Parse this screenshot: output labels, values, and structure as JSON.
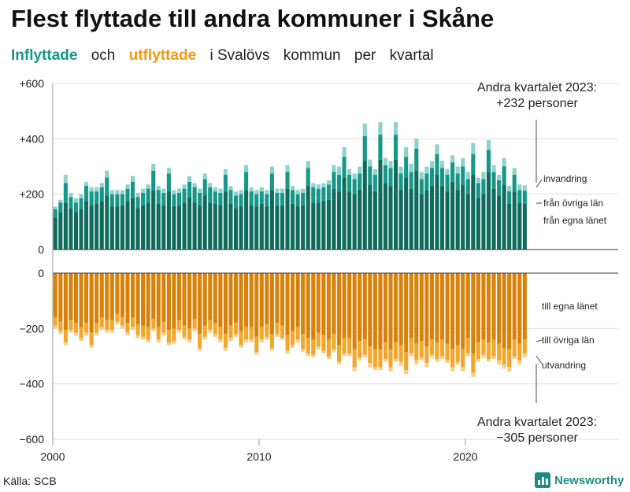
{
  "title": "Flest flyttade till andra kommuner i Skåne",
  "subtitle": {
    "inflyttade": "Inflyttade",
    "och": "och",
    "utflyttade": "utflyttade",
    "rest_1": "i Svalövs",
    "rest_2": "kommun",
    "rest_3": "per",
    "rest_4": "kvartal"
  },
  "source": "Källa: SCB",
  "brand": "Newsworthy",
  "colors": {
    "in_own_county": "#0f6b5c",
    "in_other_counties": "#17968a",
    "immigration": "#8ed3cb",
    "out_own_county": "#d8820c",
    "out_other_counties": "#f3a62c",
    "emigration": "#f9cf87"
  },
  "chart_data": {
    "type": "bar",
    "stacked": true,
    "frequency": "quarterly",
    "x_start": "2000 Q1",
    "x_end": "2023 Q2",
    "x_ticks": [
      "2000",
      "2010",
      "2020"
    ],
    "y_ticks": [
      "+600",
      "+400",
      "+200",
      "0",
      "−200",
      "−400",
      "−600"
    ],
    "ylim": [
      -600,
      600
    ],
    "legend_in": [
      "invandring",
      "från övriga län",
      "från egna länet"
    ],
    "legend_out": [
      "till egna länet",
      "till övriga län",
      "utvandring"
    ],
    "annotation_in": [
      "Andra kvartalet 2023:",
      "+232 personer"
    ],
    "annotation_out": [
      "Andra kvartalet 2023:",
      "−305 personer"
    ],
    "in_totals": [
      155,
      180,
      270,
      205,
      185,
      200,
      245,
      225,
      225,
      240,
      285,
      215,
      215,
      215,
      235,
      265,
      205,
      220,
      235,
      310,
      230,
      220,
      295,
      215,
      220,
      235,
      265,
      240,
      220,
      275,
      240,
      225,
      220,
      290,
      230,
      210,
      215,
      305,
      225,
      215,
      225,
      215,
      300,
      220,
      220,
      305,
      230,
      215,
      220,
      320,
      240,
      235,
      240,
      250,
      305,
      300,
      370,
      290,
      275,
      300,
      455,
      325,
      290,
      460,
      330,
      320,
      460,
      300,
      370,
      310,
      400,
      280,
      300,
      320,
      380,
      320,
      290,
      340,
      300,
      330,
      280,
      385,
      260,
      280,
      395,
      305,
      270,
      330,
      230,
      295,
      235,
      232
    ],
    "in_own_county": [
      115,
      135,
      170,
      150,
      135,
      145,
      175,
      160,
      165,
      175,
      195,
      155,
      155,
      160,
      175,
      185,
      150,
      160,
      170,
      215,
      165,
      160,
      210,
      155,
      160,
      170,
      190,
      170,
      160,
      195,
      170,
      165,
      160,
      210,
      165,
      150,
      155,
      215,
      160,
      155,
      165,
      155,
      215,
      160,
      160,
      220,
      165,
      155,
      160,
      230,
      170,
      170,
      175,
      180,
      220,
      210,
      260,
      210,
      200,
      215,
      320,
      235,
      210,
      325,
      240,
      230,
      325,
      215,
      260,
      220,
      285,
      200,
      215,
      230,
      270,
      230,
      210,
      245,
      215,
      235,
      200,
      270,
      185,
      200,
      280,
      220,
      195,
      235,
      165,
      210,
      170,
      165
    ],
    "in_other_counties": [
      30,
      35,
      70,
      40,
      35,
      40,
      55,
      50,
      45,
      50,
      65,
      45,
      45,
      40,
      45,
      60,
      40,
      45,
      50,
      70,
      50,
      45,
      65,
      45,
      45,
      50,
      55,
      55,
      45,
      60,
      55,
      45,
      45,
      60,
      50,
      45,
      45,
      65,
      50,
      45,
      45,
      45,
      60,
      45,
      45,
      60,
      50,
      45,
      45,
      65,
      55,
      50,
      50,
      55,
      60,
      60,
      75,
      60,
      55,
      60,
      90,
      65,
      60,
      90,
      65,
      65,
      90,
      60,
      75,
      60,
      80,
      55,
      60,
      65,
      75,
      65,
      60,
      70,
      60,
      65,
      55,
      75,
      55,
      55,
      80,
      60,
      55,
      65,
      45,
      60,
      45,
      47
    ],
    "out_totals": [
      200,
      220,
      260,
      215,
      225,
      245,
      225,
      270,
      225,
      205,
      215,
      215,
      185,
      200,
      225,
      205,
      235,
      240,
      250,
      210,
      250,
      225,
      260,
      255,
      215,
      240,
      250,
      210,
      280,
      240,
      215,
      230,
      250,
      280,
      245,
      230,
      270,
      250,
      250,
      295,
      250,
      240,
      280,
      230,
      240,
      290,
      270,
      250,
      285,
      300,
      305,
      275,
      290,
      310,
      285,
      330,
      300,
      300,
      355,
      315,
      305,
      340,
      350,
      350,
      320,
      355,
      320,
      335,
      365,
      300,
      330,
      315,
      340,
      305,
      320,
      310,
      325,
      355,
      330,
      355,
      300,
      375,
      320,
      305,
      320,
      310,
      330,
      345,
      355,
      310,
      330,
      305
    ],
    "out_own_county": [
      160,
      175,
      205,
      170,
      180,
      195,
      180,
      215,
      180,
      160,
      170,
      170,
      145,
      160,
      180,
      160,
      185,
      190,
      195,
      165,
      195,
      175,
      205,
      200,
      170,
      190,
      200,
      165,
      220,
      190,
      170,
      180,
      195,
      220,
      190,
      180,
      210,
      195,
      195,
      230,
      195,
      185,
      220,
      180,
      190,
      225,
      210,
      195,
      220,
      235,
      240,
      215,
      225,
      240,
      220,
      260,
      235,
      235,
      275,
      245,
      240,
      265,
      275,
      275,
      250,
      275,
      250,
      260,
      285,
      235,
      255,
      245,
      265,
      240,
      250,
      240,
      255,
      275,
      260,
      275,
      235,
      290,
      250,
      240,
      250,
      240,
      255,
      270,
      275,
      240,
      255,
      240
    ],
    "out_other_counties": [
      30,
      35,
      45,
      35,
      35,
      40,
      35,
      45,
      35,
      35,
      35,
      35,
      30,
      30,
      35,
      35,
      40,
      40,
      45,
      35,
      45,
      40,
      45,
      45,
      35,
      40,
      40,
      35,
      50,
      40,
      35,
      40,
      45,
      50,
      45,
      40,
      50,
      45,
      45,
      55,
      45,
      45,
      50,
      40,
      45,
      55,
      50,
      45,
      55,
      55,
      55,
      50,
      55,
      60,
      55,
      60,
      55,
      55,
      65,
      60,
      55,
      60,
      65,
      65,
      60,
      65,
      60,
      60,
      65,
      55,
      60,
      60,
      60,
      55,
      60,
      60,
      60,
      65,
      60,
      65,
      55,
      70,
      60,
      55,
      60,
      60,
      60,
      60,
      65,
      60,
      60,
      50
    ]
  }
}
